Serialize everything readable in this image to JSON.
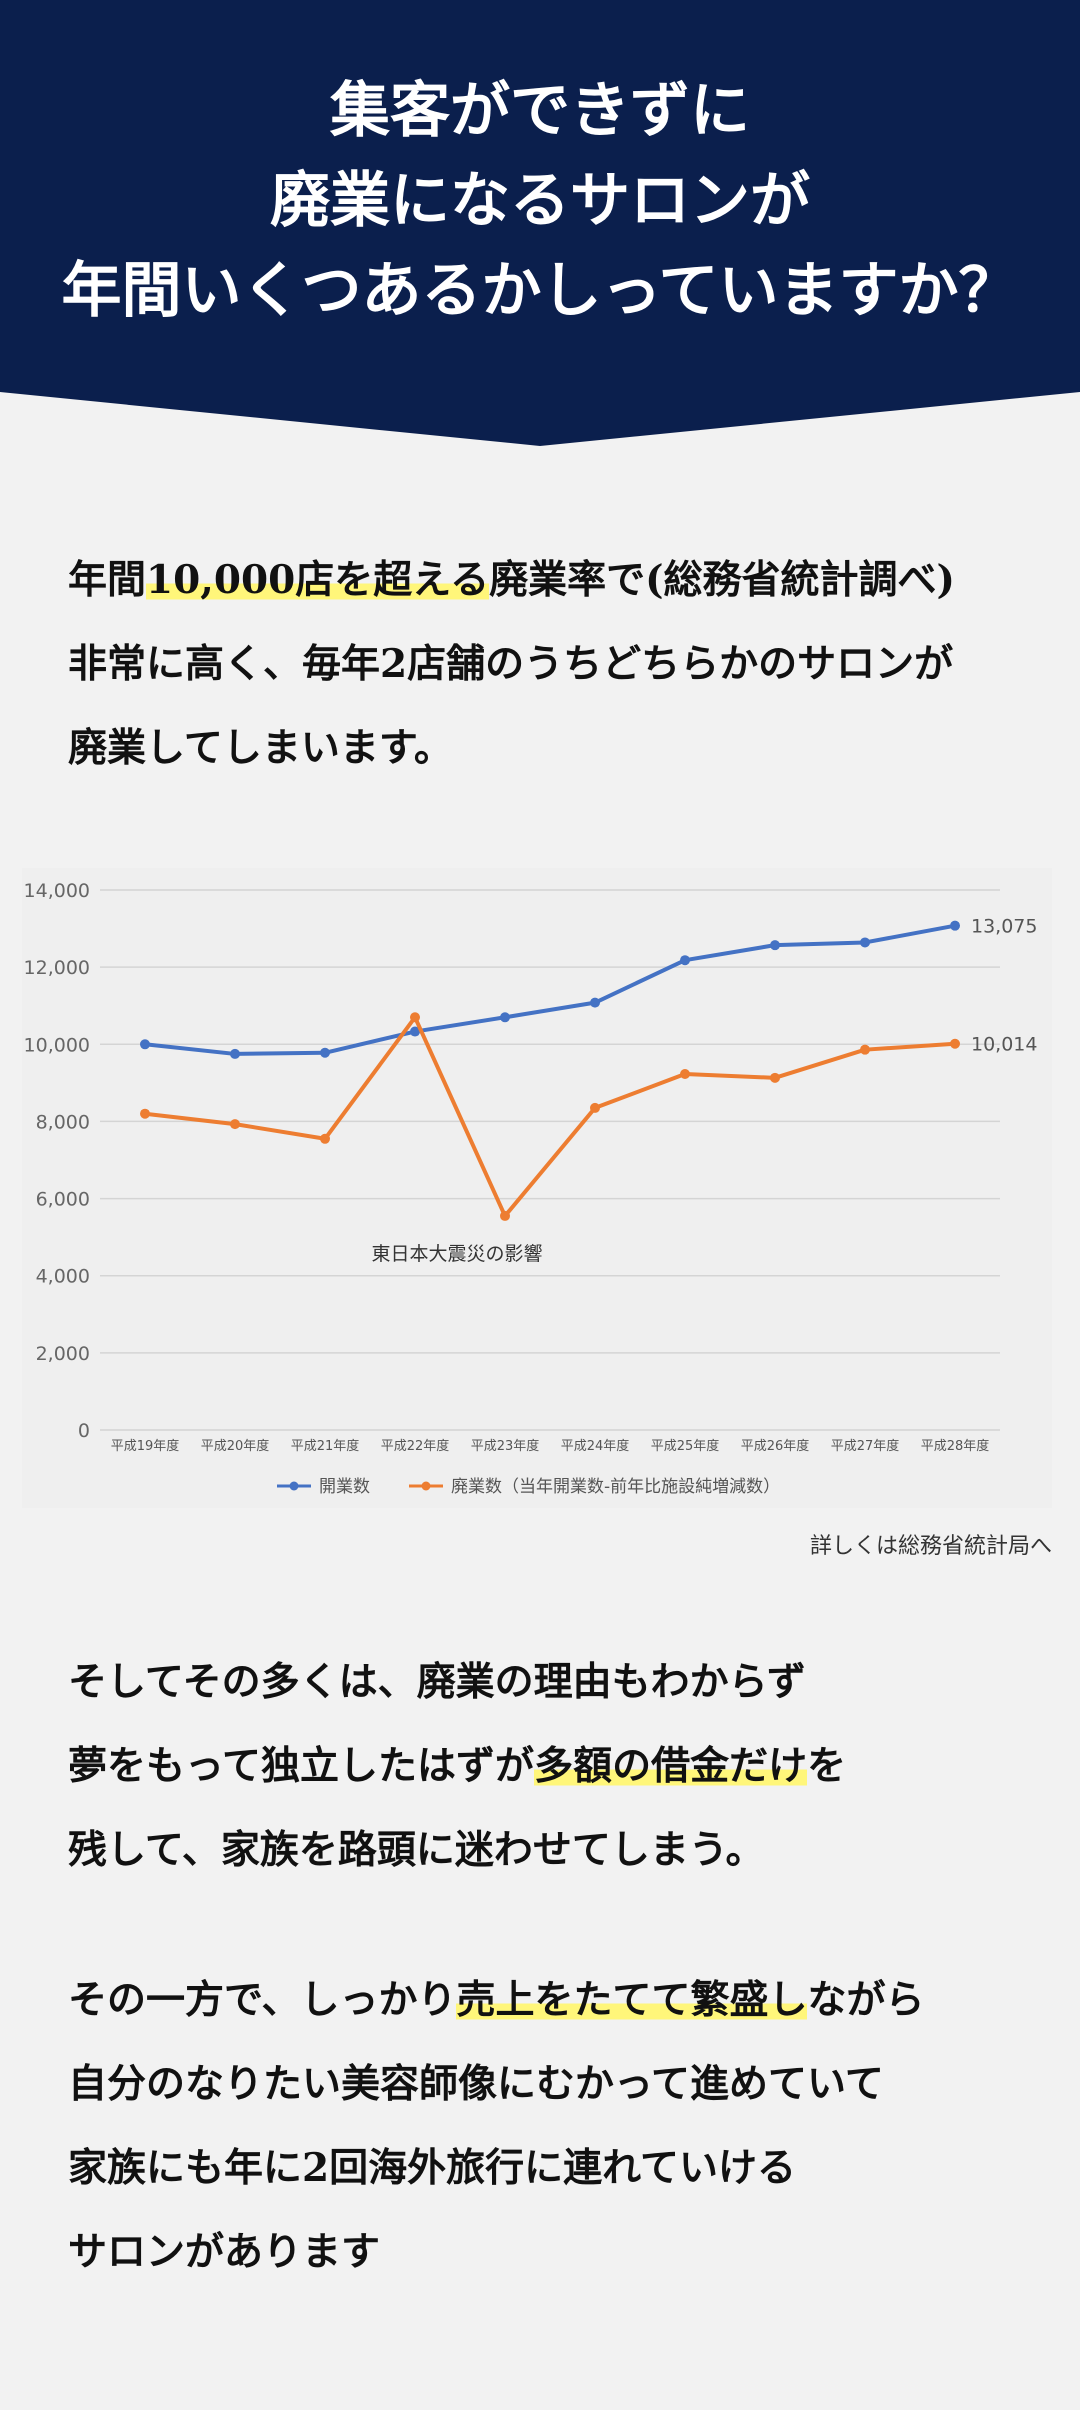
{
  "header": {
    "title_lines": [
      "集客ができずに",
      "廃業になるサロンが",
      "年間いくつあるかしっていますか？"
    ],
    "bg_color": "#0b1f4d"
  },
  "intro": {
    "line1_pre": "年間",
    "line1_hl": "10,000店を超える",
    "line1_post": "廃業率で(総務省統計調べ)",
    "line2": "非常に高く、毎年2店舗のうちどちらかのサロンが",
    "line3": "廃業してしまいます。"
  },
  "chart_data": {
    "type": "line",
    "categories": [
      "平成19年度",
      "平成20年度",
      "平成21年度",
      "平成22年度",
      "平成23年度",
      "平成24年度",
      "平成25年度",
      "平成26年度",
      "平成27年度",
      "平成28年度"
    ],
    "series": [
      {
        "name": "開業数",
        "color": "#4472c4",
        "values": [
          10000,
          9750,
          9780,
          10330,
          10700,
          11080,
          12180,
          12570,
          12640,
          13075
        ]
      },
      {
        "name": "廃業数（当年開業数-前年比施設純増減数）",
        "color": "#ed7d31",
        "values": [
          8200,
          7930,
          7550,
          10700,
          5550,
          8350,
          9230,
          9130,
          9860,
          10014
        ]
      }
    ],
    "end_labels": [
      "13,075",
      "10,014"
    ],
    "yticks": [
      "0",
      "2,000",
      "4,000",
      "6,000",
      "8,000",
      "10,000",
      "12,000",
      "14,000"
    ],
    "ylim": [
      0,
      14000
    ],
    "annotation": "東日本大震災の影響",
    "grid": true,
    "legend_position": "bottom"
  },
  "source_link": "詳しくは総務省統計局へ",
  "para1": {
    "line1": "そしてその多くは、廃業の理由もわからず",
    "line2_pre": "夢をもって独立したはずが",
    "line2_hl": "多額の借金だけ",
    "line2_post": "を",
    "line3": "残して、家族を路頭に迷わせてしまう。"
  },
  "para2": {
    "line1_pre": "その一方で、しっかり",
    "line1_hl": "売上をたてて繁盛し",
    "line1_post": "ながら",
    "line2": "自分のなりたい美容師像にむかって進めていて",
    "line3": "家族にも年に2回海外旅行に連れていける",
    "line4": "サロンがあります"
  }
}
